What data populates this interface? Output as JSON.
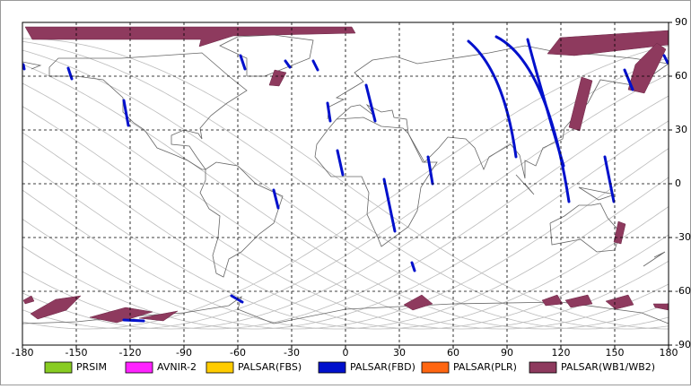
{
  "chart_data": {
    "type": "map",
    "xlim": [
      -180,
      180
    ],
    "ylim": [
      -90,
      90
    ],
    "xticks": [
      -180,
      -150,
      -120,
      -90,
      -60,
      -30,
      0,
      30,
      60,
      90,
      120,
      150,
      180
    ],
    "yticks": [
      90,
      60,
      30,
      0,
      -30,
      -60,
      -90
    ],
    "grid": true,
    "series": [
      {
        "name": "PRSIM",
        "color": "#88cc22"
      },
      {
        "name": "AVNIR-2",
        "color": "#ff22ff"
      },
      {
        "name": "PALSAR(FBS)",
        "color": "#ffcc00"
      },
      {
        "name": "PALSAR(FBD)",
        "color": "#0010cc"
      },
      {
        "name": "PALSAR(PLR)",
        "color": "#ff6611"
      },
      {
        "name": "PALSAR(WB1/WB2)",
        "color": "#8e3a5e"
      }
    ]
  }
}
